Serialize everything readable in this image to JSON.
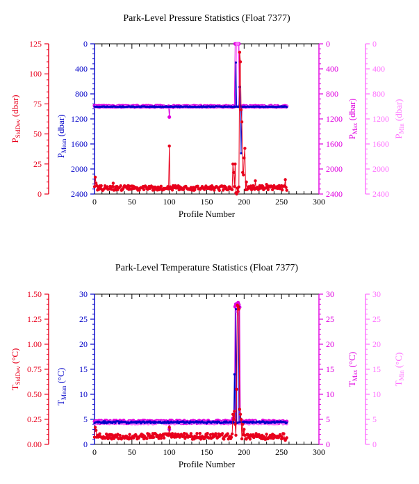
{
  "chart_data": [
    {
      "type": "scatter",
      "title": "Park-Level Pressure Statistics (Float 7377)",
      "xlabel": "Profile Number",
      "xlim": [
        0,
        300
      ],
      "xticks": [
        "0",
        "50",
        "100",
        "150",
        "200",
        "250",
        "300"
      ],
      "axes": [
        {
          "id": "sd",
          "label": "PStdDev (dbar)",
          "main": "P",
          "sub": "StdDev",
          "unit": " (dbar)",
          "color": "#e8001c",
          "lim": [
            0,
            125
          ],
          "inverted": false,
          "ticks": [
            "0",
            "25",
            "50",
            "75",
            "100",
            "125"
          ]
        },
        {
          "id": "mean",
          "label": "PMean (dbar)",
          "main": "P",
          "sub": "Mean",
          "unit": " (dbar)",
          "color": "#0000c8",
          "lim": [
            0,
            2400
          ],
          "inverted": true,
          "ticks": [
            "0",
            "400",
            "800",
            "1200",
            "1600",
            "2000",
            "2400"
          ]
        },
        {
          "id": "max",
          "label": "PMax (dbar)",
          "main": "P",
          "sub": "Max",
          "unit": " (dbar)",
          "color": "#e000e0",
          "lim": [
            0,
            2400
          ],
          "inverted": true,
          "ticks": [
            "0",
            "400",
            "800",
            "1200",
            "1600",
            "2000",
            "2400"
          ]
        },
        {
          "id": "min",
          "label": "PMin (dbar)",
          "main": "P",
          "sub": "Min",
          "unit": " (dbar)",
          "color": "#ff70ff",
          "lim": [
            0,
            2400
          ],
          "inverted": true,
          "ticks": [
            "0",
            "400",
            "800",
            "1200",
            "1600",
            "2000",
            "2400"
          ]
        }
      ],
      "series": [
        {
          "axis": "max",
          "color": "#e000e0",
          "marker_size": 2.6,
          "baseline": 1000,
          "noise": 12,
          "x": [
            0,
            257
          ],
          "spikes": [
            [
              100,
              1170
            ],
            [
              188,
              0
            ],
            [
              189,
              0
            ],
            [
              190,
              0
            ],
            [
              191,
              0
            ],
            [
              192,
              0
            ],
            [
              193,
              0
            ]
          ]
        },
        {
          "axis": "min",
          "color": "#ff70ff",
          "marker_size": 2.0,
          "baseline": 1010,
          "noise": 10,
          "x": [
            0,
            257
          ],
          "spikes": [
            [
              190,
              0
            ],
            [
              191,
              0
            ],
            [
              192,
              0
            ]
          ]
        },
        {
          "axis": "mean",
          "color": "#0000c8",
          "marker_size": 1.6,
          "baseline": 1005,
          "noise": 6,
          "x": [
            0,
            257
          ],
          "spikes": [
            [
              189,
              300
            ],
            [
              194,
              690
            ],
            [
              196,
              1750
            ]
          ]
        },
        {
          "axis": "sd",
          "color": "#e8001c",
          "marker_size": 2.2,
          "baseline": 5,
          "noise": 2,
          "x": [
            0,
            257
          ],
          "spikes": [
            [
              1,
              14
            ],
            [
              2,
              9
            ],
            [
              3,
              7
            ],
            [
              25,
              9
            ],
            [
              45,
              7
            ],
            [
              100,
              40
            ],
            [
              101,
              6
            ],
            [
              185,
              25
            ],
            [
              186,
              18
            ],
            [
              188,
              25
            ],
            [
              189,
              1
            ],
            [
              190,
              0
            ],
            [
              192,
              2
            ],
            [
              194,
              118
            ],
            [
              195,
              110
            ],
            [
              196,
              70
            ],
            [
              197,
              60
            ],
            [
              198,
              18
            ],
            [
              199,
              16
            ],
            [
              200,
              30
            ],
            [
              201,
              38
            ],
            [
              203,
              10
            ],
            [
              215,
              11
            ],
            [
              230,
              8
            ],
            [
              255,
              12
            ]
          ]
        }
      ]
    },
    {
      "type": "scatter",
      "title": "Park-Level Temperature Statistics (Float 7377)",
      "xlabel": "Profile Number",
      "xlim": [
        0,
        300
      ],
      "xticks": [
        "0",
        "50",
        "100",
        "150",
        "200",
        "250",
        "300"
      ],
      "axes": [
        {
          "id": "sd",
          "label": "TStdDev (°C)",
          "main": "T",
          "sub": "StdDev",
          "unit": " (°C)",
          "color": "#e8001c",
          "lim": [
            0,
            1.5
          ],
          "inverted": false,
          "ticks": [
            "0.00",
            "0.25",
            "0.50",
            "0.75",
            "1.00",
            "1.25",
            "1.50"
          ]
        },
        {
          "id": "mean",
          "label": "TMean (°C)",
          "main": "T",
          "sub": "Mean",
          "unit": " (°C)",
          "color": "#0000c8",
          "lim": [
            0,
            30
          ],
          "inverted": false,
          "ticks": [
            "0",
            "5",
            "10",
            "15",
            "20",
            "25",
            "30"
          ]
        },
        {
          "id": "max",
          "label": "TMax (°C)",
          "main": "T",
          "sub": "Max",
          "unit": " (°C)",
          "color": "#e000e0",
          "lim": [
            0,
            30
          ],
          "inverted": false,
          "ticks": [
            "0",
            "5",
            "10",
            "15",
            "20",
            "25",
            "30"
          ]
        },
        {
          "id": "min",
          "label": "TMin (°C)",
          "main": "T",
          "sub": "Min",
          "unit": " (°C)",
          "color": "#ff70ff",
          "lim": [
            0,
            30
          ],
          "inverted": false,
          "ticks": [
            "0",
            "5",
            "10",
            "15",
            "20",
            "25",
            "30"
          ]
        }
      ],
      "series": [
        {
          "axis": "max",
          "color": "#e000e0",
          "marker_size": 2.6,
          "baseline": 4.5,
          "noise": 0.3,
          "x": [
            0,
            257
          ],
          "spikes": [
            [
              100,
              3.0
            ],
            [
              185,
              5.2
            ],
            [
              188,
              27.5
            ],
            [
              189,
              28.0
            ],
            [
              190,
              27.8
            ],
            [
              191,
              28.1
            ],
            [
              192,
              28.3
            ],
            [
              193,
              27.9
            ],
            [
              194,
              27.4
            ]
          ]
        },
        {
          "axis": "min",
          "color": "#ff70ff",
          "marker_size": 2.0,
          "baseline": 4.3,
          "noise": 0.25,
          "x": [
            0,
            257
          ],
          "spikes": [
            [
              189,
              26.5
            ],
            [
              190,
              27.0
            ],
            [
              191,
              27.2
            ],
            [
              192,
              26.0
            ]
          ]
        },
        {
          "axis": "mean",
          "color": "#0000c8",
          "marker_size": 1.6,
          "baseline": 4.4,
          "noise": 0.2,
          "x": [
            0,
            257
          ],
          "spikes": [
            [
              187,
              14.0
            ],
            [
              189,
              27.0
            ],
            [
              193,
              27.5
            ],
            [
              195,
              6.0
            ]
          ]
        },
        {
          "axis": "sd",
          "color": "#e8001c",
          "marker_size": 2.2,
          "baseline": 0.08,
          "noise": 0.03,
          "x": [
            0,
            257
          ],
          "spikes": [
            [
              1,
              0.17
            ],
            [
              2,
              0.14
            ],
            [
              100,
              0.17
            ],
            [
              185,
              0.3
            ],
            [
              186,
              0.25
            ],
            [
              187,
              0.33
            ],
            [
              188,
              0.2
            ],
            [
              190,
              0.55
            ],
            [
              191,
              1.39
            ],
            [
              192,
              1.38
            ],
            [
              193,
              1.35
            ],
            [
              194,
              0.35
            ],
            [
              195,
              0.3
            ],
            [
              196,
              0.25
            ],
            [
              198,
              0.2
            ],
            [
              200,
              0.15
            ],
            [
              255,
              0.04
            ]
          ]
        }
      ]
    }
  ]
}
